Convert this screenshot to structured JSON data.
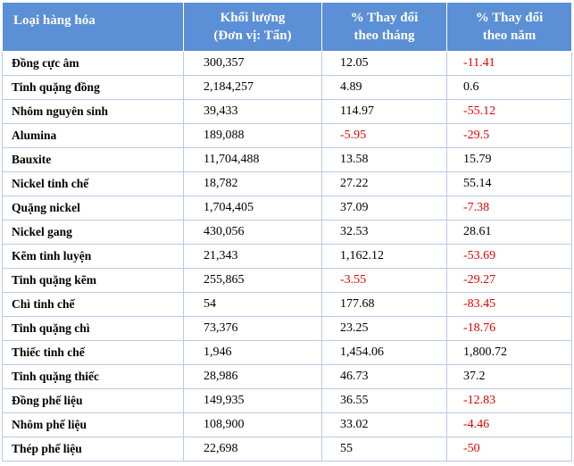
{
  "header": {
    "name": "Loại hàng hóa",
    "volume_line1": "Khối lượng",
    "volume_line2": "(Đơn vị: Tấn)",
    "mom_line1": "% Thay đổi",
    "mom_line2": "theo tháng",
    "yoy_line1": "% Thay đổi",
    "yoy_line2": "theo năm"
  },
  "negative_color": "#e00000",
  "header_color": "#5b8fd6",
  "rows": [
    {
      "name": "Đồng cực âm",
      "volume": "300,357",
      "mom": "12.05",
      "yoy": "-11.41"
    },
    {
      "name": "Tinh quặng đồng",
      "volume": "2,184,257",
      "mom": "4.89",
      "yoy": "0.6"
    },
    {
      "name": "Nhôm nguyên sinh",
      "volume": "39,433",
      "mom": "114.97",
      "yoy": "-55.12"
    },
    {
      "name": "Alumina",
      "volume": "189,088",
      "mom": "-5.95",
      "yoy": "-29.5"
    },
    {
      "name": "Bauxite",
      "volume": "11,704,488",
      "mom": "13.58",
      "yoy": "15.79"
    },
    {
      "name": "Nickel tinh chế",
      "volume": "18,782",
      "mom": "27.22",
      "yoy": "55.14"
    },
    {
      "name": "Quặng nickel",
      "volume": "1,704,405",
      "mom": "37.09",
      "yoy": "-7.38"
    },
    {
      "name": "Nickel gang",
      "volume": "430,056",
      "mom": "32.53",
      "yoy": "28.61"
    },
    {
      "name": "Kẽm tinh luyện",
      "volume": "21,343",
      "mom": "1,162.12",
      "yoy": "-53.69"
    },
    {
      "name": "Tinh quặng kẽm",
      "volume": "255,865",
      "mom": "-3.55",
      "yoy": "-29.27"
    },
    {
      "name": "Chì tinh chế",
      "volume": "54",
      "mom": "177.68",
      "yoy": "-83.45"
    },
    {
      "name": "Tinh quặng chì",
      "volume": "73,376",
      "mom": "23.25",
      "yoy": "-18.76"
    },
    {
      "name": "Thiếc tinh chế",
      "volume": "1,946",
      "mom": "1,454.06",
      "yoy": "1,800.72"
    },
    {
      "name": "Tinh quặng thiếc",
      "volume": "28,986",
      "mom": "46.73",
      "yoy": "37.2"
    },
    {
      "name": "Đồng phế liệu",
      "volume": "149,935",
      "mom": "36.55",
      "yoy": "-12.83"
    },
    {
      "name": "Nhôm phế liệu",
      "volume": "108,900",
      "mom": "33.02",
      "yoy": "-4.46"
    },
    {
      "name": "Thép phế liệu",
      "volume": "22,698",
      "mom": "55",
      "yoy": "-50"
    }
  ]
}
